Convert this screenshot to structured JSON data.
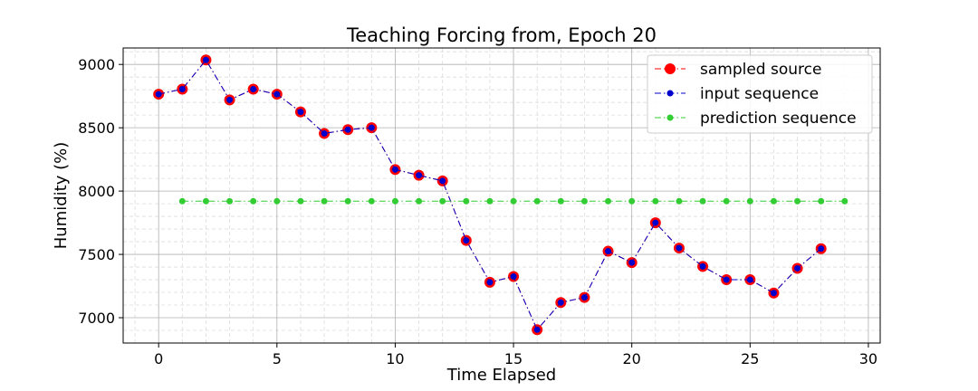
{
  "chart_data": {
    "type": "line",
    "title": "Teaching Forcing from, Epoch 20",
    "xlabel": "Time Elapsed",
    "ylabel": "Humidity (%)",
    "xlim": [
      -1.5,
      30.5
    ],
    "ylim": [
      6800,
      9130
    ],
    "xticks": [
      0,
      5,
      10,
      15,
      20,
      25,
      30
    ],
    "yticks": [
      7000,
      7500,
      8000,
      8500,
      9000
    ],
    "grid": true,
    "legend_position": "top-right",
    "series": [
      {
        "name": "sampled source",
        "style": "dashdot",
        "color": "#ff0000",
        "marker_face": "#ff0000",
        "marker_size": "large",
        "x": [
          0,
          1,
          2,
          3,
          4,
          5,
          6,
          7,
          8,
          9,
          10,
          11,
          12,
          13,
          14,
          15,
          16,
          17,
          18,
          19,
          20,
          21,
          22,
          23,
          24,
          25,
          26,
          27,
          28
        ],
        "values": [
          8765,
          8805,
          9035,
          8720,
          8805,
          8765,
          8625,
          8455,
          8485,
          8500,
          8170,
          8125,
          8080,
          7610,
          7280,
          7325,
          6905,
          7120,
          7160,
          7525,
          7435,
          7750,
          7550,
          7405,
          7300,
          7300,
          7195,
          7390,
          7545
        ]
      },
      {
        "name": "input sequence",
        "style": "dashdot",
        "color": "#0000cc",
        "marker_face": "#0000cc",
        "marker_size": "small",
        "x": [
          0,
          1,
          2,
          3,
          4,
          5,
          6,
          7,
          8,
          9,
          10,
          11,
          12,
          13,
          14,
          15,
          16,
          17,
          18,
          19,
          20,
          21,
          22,
          23,
          24,
          25,
          26,
          27,
          28
        ],
        "values": [
          8765,
          8805,
          9035,
          8720,
          8805,
          8765,
          8625,
          8455,
          8485,
          8500,
          8170,
          8125,
          8080,
          7610,
          7280,
          7325,
          6905,
          7120,
          7160,
          7525,
          7435,
          7750,
          7550,
          7405,
          7300,
          7300,
          7195,
          7390,
          7545
        ]
      },
      {
        "name": "prediction sequence",
        "style": "dashdot",
        "color": "#32cd32",
        "marker_face": "#32cd32",
        "marker_size": "small",
        "x": [
          1,
          2,
          3,
          4,
          5,
          6,
          7,
          8,
          9,
          10,
          11,
          12,
          13,
          14,
          15,
          16,
          17,
          18,
          19,
          20,
          21,
          22,
          23,
          24,
          25,
          26,
          27,
          28,
          29
        ],
        "values": [
          7920,
          7920,
          7920,
          7920,
          7920,
          7920,
          7920,
          7920,
          7920,
          7920,
          7920,
          7920,
          7920,
          7920,
          7920,
          7920,
          7920,
          7920,
          7920,
          7920,
          7920,
          7920,
          7920,
          7920,
          7920,
          7920,
          7920,
          7920,
          7920
        ]
      }
    ]
  }
}
